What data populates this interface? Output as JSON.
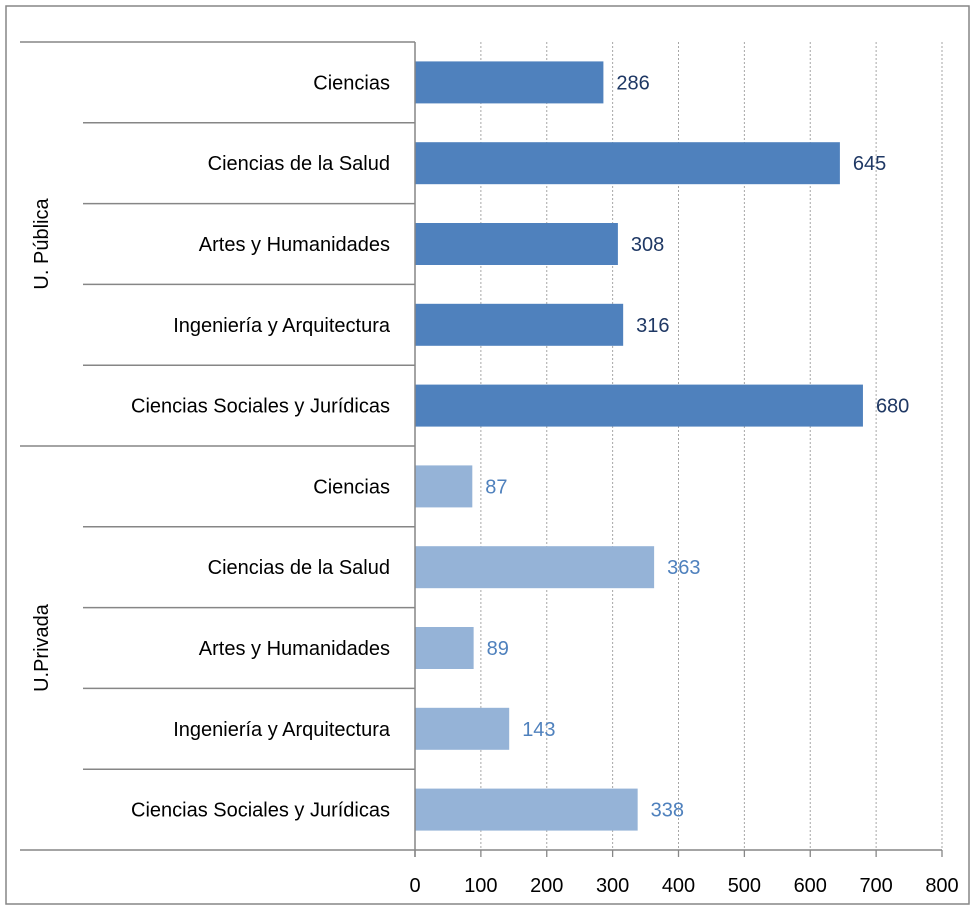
{
  "colors": {
    "public_bar": "#4f81bd",
    "private_bar": "#95b3d7",
    "public_label": "#1f3864",
    "private_label": "#4f81bd",
    "text": "#000000",
    "grid": "#a6a6a6",
    "axis": "#868686",
    "frame": "#868686"
  },
  "chart_data": {
    "type": "bar",
    "orientation": "horizontal",
    "title": "",
    "xlabel": "",
    "ylabel": "",
    "xlim": [
      0,
      800
    ],
    "x_ticks": [
      0,
      100,
      200,
      300,
      400,
      500,
      600,
      700,
      800
    ],
    "grid": "vertical-dotted",
    "legend": "none",
    "groups": [
      {
        "name": "U. Pública",
        "categories": [
          "Ciencias",
          "Ciencias de la Salud",
          "Artes y Humanidades",
          "Ingeniería y Arquitectura",
          "Ciencias Sociales y Jurídicas"
        ],
        "values": [
          286,
          645,
          308,
          316,
          680
        ]
      },
      {
        "name": "U.Privada",
        "categories": [
          "Ciencias",
          "Ciencias de la Salud",
          "Artes y Humanidades",
          "Ingeniería y Arquitectura",
          "Ciencias Sociales y Jurídicas"
        ],
        "values": [
          87,
          363,
          89,
          143,
          338
        ]
      }
    ]
  }
}
